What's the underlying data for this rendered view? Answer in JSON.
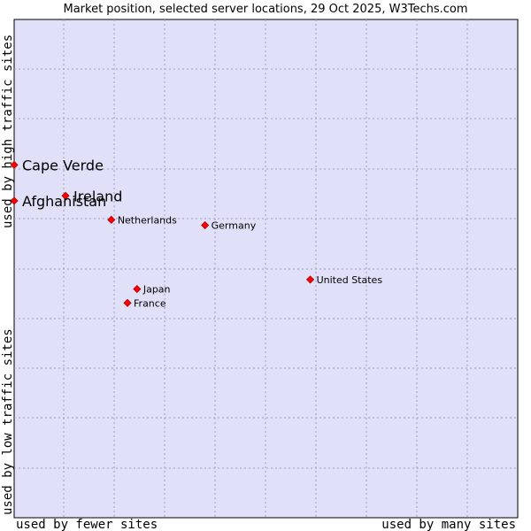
{
  "chart_data": {
    "type": "scatter",
    "title": "Market position, selected server locations, 29 Oct 2025, W3Techs.com",
    "xlabel_left": "used by fewer sites",
    "xlabel_right": "used by many sites",
    "ylabel_bottom": "used by low traffic sites",
    "ylabel_top": "used by high traffic sites",
    "xlim": [
      0,
      100
    ],
    "ylim": [
      0,
      100
    ],
    "grid": true,
    "colors": {
      "background": "#e0e0f8",
      "point": "#ff0000",
      "point_edge": "#aa0000",
      "frame": "#000000"
    },
    "points": [
      {
        "name": "Cape Verde",
        "x": 0.0,
        "y": 70.8,
        "size": "large"
      },
      {
        "name": "Ireland",
        "x": 10.2,
        "y": 64.6,
        "size": "large"
      },
      {
        "name": "Afghanistan",
        "x": 0.0,
        "y": 63.6,
        "size": "large"
      },
      {
        "name": "Netherlands",
        "x": 19.3,
        "y": 59.8,
        "size": "small"
      },
      {
        "name": "Germany",
        "x": 37.9,
        "y": 58.7,
        "size": "small"
      },
      {
        "name": "United States",
        "x": 58.8,
        "y": 47.8,
        "size": "small"
      },
      {
        "name": "Japan",
        "x": 24.4,
        "y": 45.9,
        "size": "small"
      },
      {
        "name": "France",
        "x": 22.5,
        "y": 43.1,
        "size": "small"
      }
    ]
  }
}
